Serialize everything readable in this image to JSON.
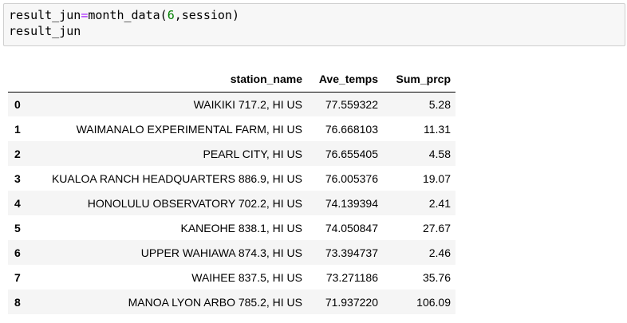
{
  "code_cell": {
    "line1": {
      "var": "result_jun",
      "op": "=",
      "func": "month_data(",
      "arg_num": "6",
      "rest": ",session)"
    },
    "line2": "result_jun"
  },
  "table": {
    "columns": [
      "",
      "station_name",
      "Ave_temps",
      "Sum_prcp"
    ],
    "rows": [
      {
        "index": "0",
        "station_name": "WAIKIKI 717.2, HI US",
        "ave_temps": "77.559322",
        "sum_prcp": "5.28"
      },
      {
        "index": "1",
        "station_name": "WAIMANALO EXPERIMENTAL FARM, HI US",
        "ave_temps": "76.668103",
        "sum_prcp": "11.31"
      },
      {
        "index": "2",
        "station_name": "PEARL CITY, HI US",
        "ave_temps": "76.655405",
        "sum_prcp": "4.58"
      },
      {
        "index": "3",
        "station_name": "KUALOA RANCH HEADQUARTERS 886.9, HI US",
        "ave_temps": "76.005376",
        "sum_prcp": "19.07"
      },
      {
        "index": "4",
        "station_name": "HONOLULU OBSERVATORY 702.2, HI US",
        "ave_temps": "74.139394",
        "sum_prcp": "2.41"
      },
      {
        "index": "5",
        "station_name": "KANEOHE 838.1, HI US",
        "ave_temps": "74.050847",
        "sum_prcp": "27.67"
      },
      {
        "index": "6",
        "station_name": "UPPER WAHIAWA 874.3, HI US",
        "ave_temps": "73.394737",
        "sum_prcp": "2.46"
      },
      {
        "index": "7",
        "station_name": "WAIHEE 837.5, HI US",
        "ave_temps": "73.271186",
        "sum_prcp": "35.76"
      },
      {
        "index": "8",
        "station_name": "MANOA LYON ARBO 785.2, HI US",
        "ave_temps": "71.937220",
        "sum_prcp": "106.09"
      }
    ]
  },
  "colors": {
    "code_bg": "#f7f7f7",
    "operator": "#aa22ff",
    "number": "#008000",
    "row_stripe": "#f5f5f5"
  }
}
